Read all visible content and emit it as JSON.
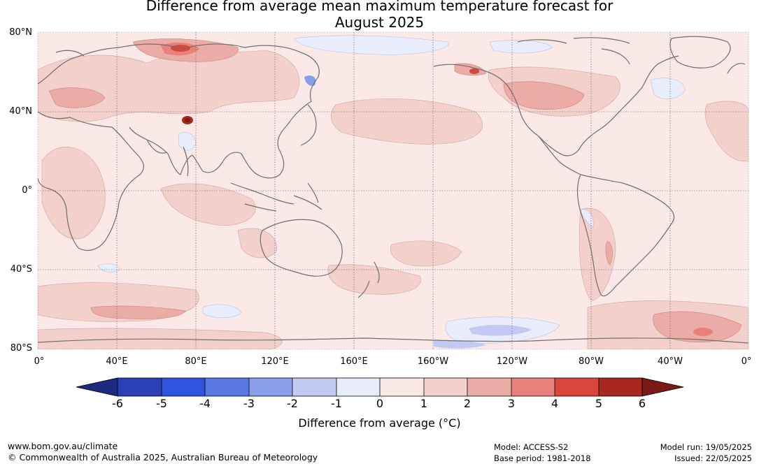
{
  "title": {
    "line1": "Difference from average mean maximum temperature forecast for",
    "line2": "August 2025"
  },
  "map": {
    "lat_labels": [
      "80°N",
      "40°N",
      "0°",
      "40°S",
      "80°S"
    ],
    "lon_labels": [
      "0°",
      "40°E",
      "80°E",
      "120°E",
      "160°E",
      "160°W",
      "120°W",
      "80°W",
      "40°W",
      "0°"
    ]
  },
  "colorbar": {
    "ticks": [
      "-6",
      "-5",
      "-4",
      "-3",
      "-2",
      "-1",
      "0",
      "1",
      "2",
      "3",
      "4",
      "5",
      "6"
    ],
    "colors": [
      "#1c2a80",
      "#2a3fb8",
      "#2f55e0",
      "#5a78e4",
      "#8a9de8",
      "#c2c9f2",
      "#e9ecfb",
      "#fbe9e7",
      "#f4d0cc",
      "#ebaca6",
      "#e8817b",
      "#d8473c",
      "#a8281f",
      "#7a1a15"
    ],
    "title": "Difference from average (°C)"
  },
  "footer": {
    "website": "www.bom.gov.au/climate",
    "copyright": "© Commonwealth of Australia 2025, Australian Bureau of Meteorology",
    "model": "Model: ACCESS-S2",
    "base_period": "Base period: 1981-2018",
    "model_run": "Model run: 19/05/2025",
    "issued": "Issued: 22/05/2025"
  }
}
